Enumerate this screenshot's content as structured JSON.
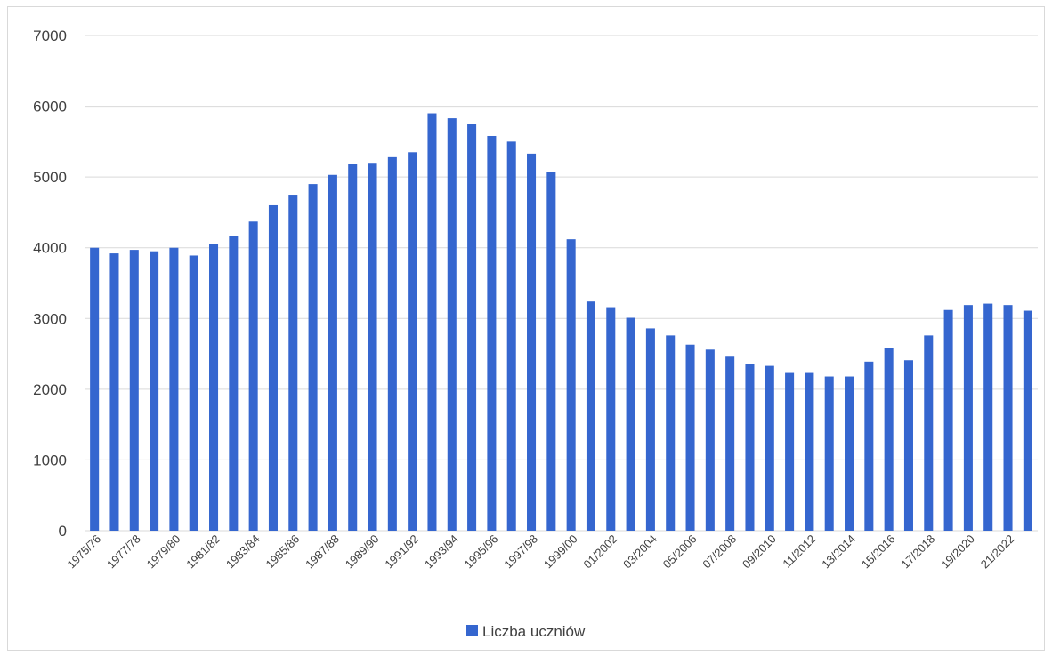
{
  "chart_data": {
    "type": "bar",
    "title": "",
    "xlabel": "",
    "ylabel": "",
    "ylim": [
      0,
      7000
    ],
    "yticks": [
      0,
      1000,
      2000,
      3000,
      4000,
      5000,
      6000,
      7000
    ],
    "grid": true,
    "legend_position": "bottom",
    "bar_color": "#3566cf",
    "gridline_color": "#d9d9d9",
    "categories": [
      "1975/76",
      "1976/77",
      "1977/78",
      "1978/79",
      "1979/80",
      "1980/81",
      "1981/82",
      "1982/83",
      "1983/84",
      "1984/85",
      "1985/86",
      "1986/87",
      "1987/88",
      "1988/89",
      "1989/90",
      "1990/91",
      "1991/92",
      "1992/93",
      "1993/94",
      "1994/95",
      "1995/96",
      "1996/97",
      "1997/98",
      "1998/99",
      "1999/00",
      "2000/01",
      "01/2002",
      "02/2003",
      "03/2004",
      "04/2005",
      "05/2006",
      "06/2007",
      "07/2008",
      "08/2009",
      "09/2010",
      "10/2011",
      "11/2012",
      "12/2013",
      "13/2014",
      "14/2015",
      "15/2016",
      "16/2017",
      "17/2018",
      "18/2019",
      "19/2020",
      "20/2021",
      "21/2022",
      "22/2023"
    ],
    "shown_tick_labels": [
      "1975/76",
      "1977/78",
      "1979/80",
      "1981/82",
      "1983/84",
      "1985/86",
      "1987/88",
      "1989/90",
      "1991/92",
      "1993/94",
      "1995/96",
      "1997/98",
      "1999/00",
      "01/2002",
      "03/2004",
      "05/2006",
      "07/2008",
      "09/2010",
      "11/2012",
      "13/2014",
      "15/2016",
      "17/2018",
      "19/2020",
      "21/2022"
    ],
    "series": [
      {
        "name": "Liczba uczniów",
        "values": [
          4000,
          3920,
          3970,
          3950,
          4000,
          3890,
          4050,
          4170,
          4370,
          4600,
          4750,
          4900,
          5030,
          5180,
          5200,
          5280,
          5350,
          5900,
          5830,
          5750,
          5580,
          5500,
          5330,
          5070,
          4120,
          3240,
          3160,
          3010,
          2860,
          2760,
          2630,
          2560,
          2460,
          2360,
          2330,
          2230,
          2230,
          2180,
          2180,
          2390,
          2580,
          2410,
          2760,
          3120,
          3190,
          3210,
          3190,
          3110
        ]
      }
    ]
  }
}
